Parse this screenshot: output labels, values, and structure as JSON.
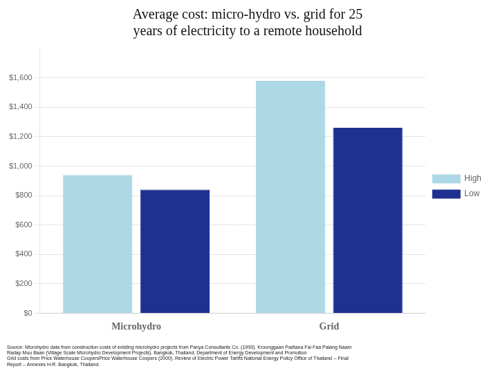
{
  "chart_data": {
    "type": "bar",
    "title": "Average cost: micro-hydro vs. grid for 25\nyears of electricity to a remote household",
    "categories": [
      "Microhydro",
      "Grid"
    ],
    "series": [
      {
        "name": "High",
        "color": "#add8e6",
        "values": [
          940,
          1580
        ]
      },
      {
        "name": "Low",
        "color": "#1e3090",
        "values": [
          840,
          1260
        ]
      }
    ],
    "ylim": [
      0,
      1800
    ],
    "yticks": [
      {
        "value": 0,
        "label": "$0"
      },
      {
        "value": 200,
        "label": "$200"
      },
      {
        "value": 400,
        "label": "$400"
      },
      {
        "value": 600,
        "label": "$600"
      },
      {
        "value": 800,
        "label": "$800"
      },
      {
        "value": 1000,
        "label": "$1,000"
      },
      {
        "value": 1200,
        "label": "$1,200"
      },
      {
        "value": 1400,
        "label": "$1,400"
      },
      {
        "value": 1600,
        "label": "$1,600"
      }
    ],
    "grid": true,
    "legend": "right",
    "annotations": [
      "Source: Microhydro data from construction costs of existing microhydro projects from Panya Consultants Co. (1993). Kroonggaan Padtana Fai Faa Palang Naam\nRadap Muu Baan (Village Scale Microhydro Development Projects). Bangkok, Thailand, Department of Energy Development and Promotion",
      "Grid costs from Price Waterhouse CoopersPrice Waterhouse Coopers (2000). Review of Electric Power Tariffs National Energy Policy Office of Thailand -- Final\nReport – Annexes H-R. Bangkok, Thailand."
    ]
  }
}
